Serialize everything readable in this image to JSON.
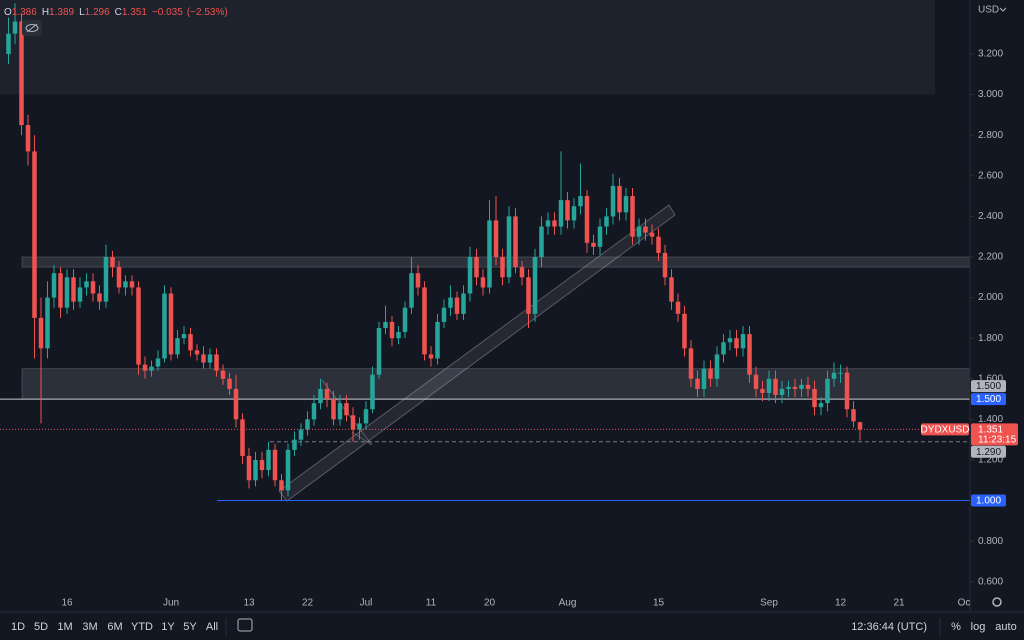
{
  "chart_data": {
    "type": "candlestick",
    "symbol": "DYDXUSD",
    "currency": "USD",
    "countdown": "11:23:15",
    "ohlc_labels": [
      "O",
      "H",
      "L",
      "C"
    ],
    "change": "−0.035",
    "change_pct": "(−2.53%)",
    "up_color": "#26a69a",
    "down_color": "#ef5350",
    "categories": [
      null,
      null,
      null,
      null,
      null,
      null,
      null,
      null,
      null,
      "16",
      null,
      null,
      null,
      null,
      null,
      null,
      null,
      null,
      null,
      null,
      null,
      null,
      null,
      null,
      null,
      "Jun",
      null,
      null,
      null,
      null,
      null,
      null,
      null,
      null,
      null,
      null,
      null,
      "13",
      null,
      null,
      null,
      null,
      null,
      null,
      null,
      null,
      "22",
      null,
      null,
      null,
      null,
      null,
      null,
      null,
      null,
      "Jul",
      null,
      null,
      null,
      null,
      null,
      null,
      null,
      null,
      null,
      "11",
      null,
      null,
      null,
      null,
      null,
      null,
      null,
      null,
      "20",
      null,
      null,
      null,
      null,
      null,
      null,
      null,
      null,
      null,
      null,
      null,
      "Aug",
      null,
      null,
      null,
      null,
      null,
      null,
      null,
      null,
      null,
      null,
      null,
      null,
      null,
      "15",
      null,
      null,
      null,
      null,
      null,
      null,
      null,
      null,
      null,
      null,
      null,
      null,
      null,
      null,
      null,
      null,
      "Sep",
      null,
      null,
      null,
      null,
      null,
      null,
      null,
      null,
      null,
      null,
      "12",
      null,
      null,
      null,
      null,
      null,
      null,
      null,
      null,
      "21",
      null,
      null,
      null,
      null,
      null,
      null,
      null,
      null,
      null,
      "Oc"
    ],
    "open": [
      3.2,
      3.3,
      3.36,
      2.85,
      2.72,
      1.9,
      1.75,
      2.0,
      2.12,
      1.95,
      2.1,
      1.98,
      2.05,
      2.08,
      2.02,
      1.98,
      2.2,
      2.15,
      2.05,
      2.08,
      2.05,
      1.67,
      1.64,
      1.66,
      1.7,
      2.02,
      1.72,
      1.8,
      1.82,
      1.74,
      1.72,
      1.68,
      1.72,
      1.64,
      1.6,
      1.55,
      1.4,
      1.22,
      1.1,
      1.2,
      1.15,
      1.25,
      1.1,
      1.05,
      1.25,
      1.3,
      1.35,
      1.4,
      1.48,
      1.55,
      1.5,
      1.4,
      1.48,
      1.42,
      1.35,
      1.38,
      1.45,
      1.62,
      1.85,
      1.88,
      1.8,
      1.83,
      1.95,
      2.12,
      2.05,
      1.72,
      1.7,
      1.88,
      1.95,
      2.0,
      1.92,
      2.02,
      2.2,
      2.1,
      2.05,
      2.38,
      2.2,
      2.1,
      2.4,
      2.15,
      2.1,
      1.92,
      2.2,
      2.35,
      2.38,
      2.35,
      2.48,
      2.38,
      2.45,
      2.5,
      2.27,
      2.25,
      2.35,
      2.4,
      2.55,
      2.42,
      2.5,
      2.3,
      2.35,
      2.32,
      2.3,
      2.22,
      2.1,
      1.98,
      1.92,
      1.75,
      1.6,
      1.55,
      1.65,
      1.6,
      1.72,
      1.78,
      1.8,
      1.75,
      1.82,
      1.62,
      1.55,
      1.53,
      1.6,
      1.52,
      1.55,
      1.56,
      1.55,
      1.57,
      1.55,
      1.46,
      1.48,
      1.6,
      1.63,
      1.63,
      1.45,
      1.386,
      null,
      null,
      null,
      null,
      null,
      null,
      null,
      null,
      null,
      null,
      null,
      null,
      null,
      null,
      null,
      null
    ],
    "high": [
      3.38,
      3.45,
      3.4,
      2.9,
      2.8,
      2.0,
      2.08,
      2.16,
      2.15,
      2.14,
      2.14,
      2.1,
      2.12,
      2.12,
      2.06,
      2.26,
      2.23,
      2.18,
      2.11,
      2.11,
      2.08,
      1.71,
      1.69,
      1.74,
      2.06,
      2.05,
      1.84,
      1.86,
      1.85,
      1.77,
      1.76,
      1.75,
      1.75,
      1.67,
      1.63,
      1.62,
      1.43,
      1.26,
      1.24,
      1.24,
      1.29,
      1.28,
      1.13,
      1.28,
      1.34,
      1.38,
      1.44,
      1.52,
      1.6,
      1.58,
      1.54,
      1.52,
      1.52,
      1.46,
      1.41,
      1.49,
      1.66,
      1.88,
      1.96,
      1.91,
      1.86,
      1.98,
      2.2,
      2.16,
      2.08,
      1.76,
      1.92,
      1.99,
      2.06,
      2.03,
      2.06,
      2.25,
      2.24,
      2.14,
      2.48,
      2.5,
      2.24,
      2.45,
      2.44,
      2.18,
      2.14,
      2.24,
      2.4,
      2.42,
      2.42,
      2.72,
      2.52,
      2.49,
      2.66,
      2.53,
      2.31,
      2.39,
      2.44,
      2.61,
      2.59,
      2.54,
      2.54,
      2.39,
      2.39,
      2.36,
      2.34,
      2.26,
      2.14,
      2.02,
      1.96,
      1.79,
      1.64,
      1.69,
      1.69,
      1.76,
      1.82,
      1.84,
      1.84,
      1.86,
      1.86,
      1.66,
      1.59,
      1.64,
      1.64,
      1.59,
      1.59,
      1.6,
      1.6,
      1.61,
      1.59,
      1.51,
      1.64,
      1.68,
      1.67,
      1.66,
      1.49,
      1.389,
      null,
      null,
      null,
      null,
      null,
      null,
      null,
      null,
      null,
      null,
      null,
      null,
      null,
      null,
      null,
      null
    ],
    "low": [
      3.15,
      3.25,
      2.8,
      2.65,
      1.7,
      1.38,
      1.7,
      1.95,
      1.9,
      1.92,
      1.94,
      1.95,
      2.01,
      1.98,
      1.94,
      1.95,
      2.1,
      2.02,
      2.01,
      2.01,
      1.62,
      1.6,
      1.61,
      1.64,
      1.68,
      1.69,
      1.7,
      1.77,
      1.71,
      1.69,
      1.65,
      1.65,
      1.61,
      1.57,
      1.52,
      1.36,
      1.18,
      1.06,
      1.07,
      1.11,
      1.12,
      1.07,
      1.0,
      1.02,
      1.22,
      1.27,
      1.32,
      1.37,
      1.45,
      1.46,
      1.37,
      1.37,
      1.39,
      1.29,
      1.3,
      1.35,
      1.43,
      1.6,
      1.82,
      1.76,
      1.77,
      1.8,
      1.92,
      2.01,
      1.69,
      1.66,
      1.67,
      1.85,
      1.91,
      1.89,
      1.89,
      1.98,
      2.06,
      2.01,
      2.02,
      2.16,
      2.06,
      2.07,
      2.12,
      2.06,
      1.85,
      1.88,
      2.15,
      2.31,
      2.31,
      2.31,
      2.34,
      2.34,
      2.41,
      2.22,
      2.21,
      2.21,
      2.31,
      2.36,
      2.38,
      2.38,
      2.26,
      2.26,
      2.28,
      2.26,
      2.18,
      2.06,
      1.94,
      1.88,
      1.71,
      1.56,
      1.51,
      1.51,
      1.56,
      1.56,
      1.68,
      1.74,
      1.71,
      1.71,
      1.58,
      1.51,
      1.49,
      1.49,
      1.48,
      1.48,
      1.51,
      1.51,
      1.51,
      1.51,
      1.42,
      1.42,
      1.44,
      1.56,
      1.58,
      1.41,
      1.36,
      1.296,
      null,
      null,
      null,
      null,
      null,
      null,
      null,
      null,
      null,
      null,
      null,
      null,
      null,
      null,
      null,
      null
    ],
    "close": [
      3.3,
      3.36,
      2.85,
      2.72,
      1.9,
      1.75,
      2.0,
      2.12,
      1.95,
      2.1,
      1.98,
      2.05,
      2.08,
      2.02,
      1.98,
      2.2,
      2.15,
      2.05,
      2.08,
      2.05,
      1.67,
      1.64,
      1.66,
      1.7,
      2.02,
      1.72,
      1.8,
      1.82,
      1.74,
      1.72,
      1.68,
      1.72,
      1.64,
      1.6,
      1.55,
      1.4,
      1.22,
      1.1,
      1.2,
      1.15,
      1.25,
      1.1,
      1.05,
      1.25,
      1.3,
      1.35,
      1.4,
      1.48,
      1.55,
      1.5,
      1.4,
      1.48,
      1.42,
      1.35,
      1.38,
      1.45,
      1.62,
      1.85,
      1.88,
      1.8,
      1.83,
      1.95,
      2.12,
      2.05,
      1.72,
      1.7,
      1.88,
      1.95,
      2.0,
      1.92,
      2.02,
      2.2,
      2.1,
      2.05,
      2.38,
      2.2,
      2.1,
      2.4,
      2.15,
      2.1,
      1.92,
      2.2,
      2.35,
      2.38,
      2.35,
      2.48,
      2.38,
      2.45,
      2.5,
      2.27,
      2.25,
      2.35,
      2.4,
      2.55,
      2.42,
      2.5,
      2.3,
      2.35,
      2.32,
      2.3,
      2.22,
      2.1,
      1.98,
      1.92,
      1.75,
      1.6,
      1.55,
      1.65,
      1.6,
      1.72,
      1.78,
      1.8,
      1.75,
      1.82,
      1.62,
      1.55,
      1.53,
      1.6,
      1.52,
      1.55,
      1.56,
      1.55,
      1.57,
      1.55,
      1.46,
      1.48,
      1.6,
      1.63,
      1.63,
      1.45,
      1.39,
      1.351,
      null,
      null,
      null,
      null,
      null,
      null,
      null,
      null,
      null,
      null,
      null,
      null,
      null,
      null,
      null,
      null
    ],
    "ylim": [
      0.451,
      3.466
    ],
    "yticks": [
      {
        "value": 3.2,
        "label": "3.200"
      },
      {
        "value": 3.0,
        "label": "3.000"
      },
      {
        "value": 2.8,
        "label": "2.800"
      },
      {
        "value": 2.6,
        "label": "2.600"
      },
      {
        "value": 2.4,
        "label": "2.400"
      },
      {
        "value": 2.2,
        "label": "2.200"
      },
      {
        "value": 2.0,
        "label": "2.000"
      },
      {
        "value": 1.8,
        "label": "1.800"
      },
      {
        "value": 1.6,
        "label": "1.600"
      },
      {
        "value": 1.4,
        "label": "1.400"
      },
      {
        "value": 1.2,
        "label": "1.200"
      },
      {
        "value": 0.8,
        "label": "0.800"
      },
      {
        "value": 0.6,
        "label": "0.600"
      }
    ],
    "zones": [
      [
        3.0,
        3.466
      ],
      [
        2.15,
        2.2
      ],
      [
        1.5,
        1.65
      ]
    ],
    "price_labels": [
      {
        "value": 1.5,
        "label": "1.500",
        "color": "#b2b5be"
      },
      {
        "value": 1.5,
        "label": "1.500",
        "color": "#2962ff"
      },
      {
        "value": 1.29,
        "label": "1.290",
        "color": "#b2b5be"
      },
      {
        "value": 1.0,
        "label": "1.000",
        "color": "#2962ff"
      }
    ],
    "grid": false
  },
  "toolbar": {
    "ranges": [
      "1D",
      "5D",
      "1M",
      "3M",
      "6M",
      "YTD",
      "1Y",
      "5Y",
      "All"
    ],
    "clock": "12:36:44 (UTC)",
    "percent": "%",
    "log": "log",
    "auto": "auto"
  }
}
